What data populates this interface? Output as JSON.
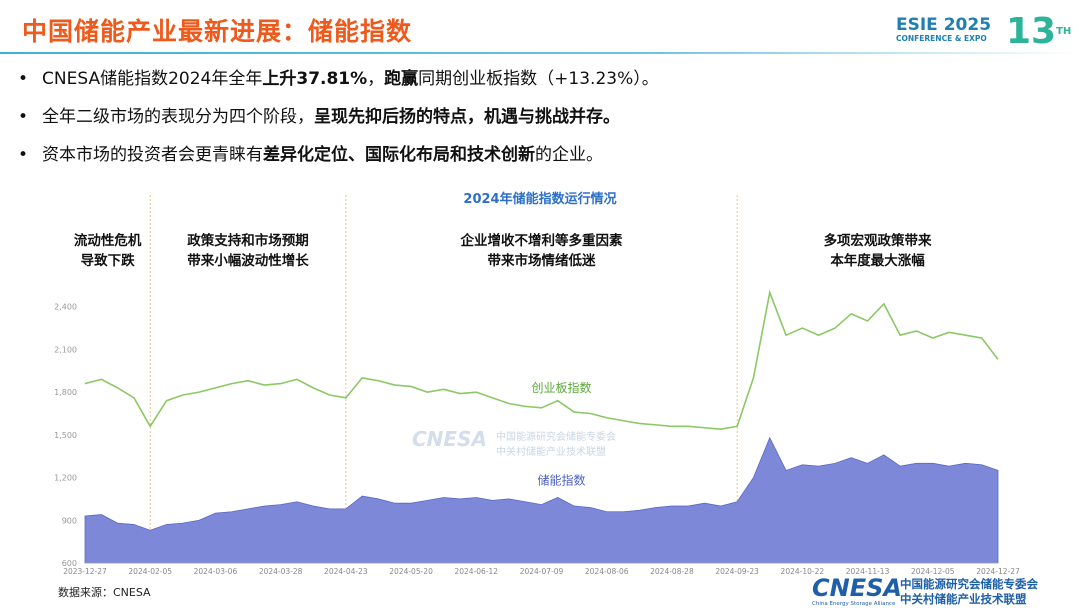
{
  "slide": {
    "title": "中国储能产业最新进展：储能指数",
    "logo": {
      "event": "ESIE 2025",
      "sub": "CONFERENCE & EXPO",
      "edition": "13",
      "edition_suffix": "TH"
    },
    "bullets": [
      [
        {
          "text": "CNESA储能指数2024年全年",
          "bold": false
        },
        {
          "text": "上升37.81%",
          "bold": true
        },
        {
          "text": "，",
          "bold": false
        },
        {
          "text": "跑赢",
          "bold": true
        },
        {
          "text": "同期创业板指数（+13.23%）。",
          "bold": false
        }
      ],
      [
        {
          "text": "全年二级市场的表现分为四个阶段，",
          "bold": false
        },
        {
          "text": "呈现先抑后扬的特点，机遇与挑战并存。",
          "bold": true
        }
      ],
      [
        {
          "text": "资本市场的投资者会更青睐有",
          "bold": false
        },
        {
          "text": "差异化定位、国际化布局和技术创新",
          "bold": true
        },
        {
          "text": "的企业。",
          "bold": false
        }
      ]
    ],
    "source": "数据来源：CNESA",
    "footer_logo": {
      "brand": "CNESA",
      "org1": "中国能源研究会储能专委会",
      "org2": "中关村储能产业技术联盟",
      "english": "China Energy Storage Alliance"
    }
  },
  "chart_data": {
    "type": "line",
    "title": "2024年储能指数运行情况",
    "annotations": [
      [
        "流动性危机",
        "导致下跌"
      ],
      [
        "政策支持和市场预期",
        "带来小幅波动性增长"
      ],
      [
        "企业增收不增利等多重因素",
        "带来市场情绪低迷"
      ],
      [
        "多项宏观政策带来",
        "本年度最大涨幅"
      ]
    ],
    "categories": [
      "2023-12-27",
      null,
      null,
      null,
      "2024-02-05",
      null,
      null,
      null,
      "2024-03-06",
      null,
      null,
      null,
      "2024-03-28",
      null,
      null,
      null,
      "2024-04-23",
      null,
      null,
      null,
      "2024-05-20",
      null,
      null,
      null,
      "2024-06-12",
      null,
      null,
      null,
      "2024-07-09",
      null,
      null,
      null,
      "2024-08-06",
      null,
      null,
      null,
      "2024-08-28",
      null,
      null,
      null,
      "2024-09-23",
      null,
      null,
      null,
      "2024-10-22",
      null,
      null,
      null,
      "2024-11-13",
      null,
      null,
      null,
      "2024-12-05",
      null,
      null,
      null,
      "2024-12-27"
    ],
    "series": [
      {
        "name": "创业板指数",
        "color": "#8cc866",
        "style": "line",
        "values": [
          1860,
          1890,
          1830,
          1760,
          1560,
          1740,
          1780,
          1800,
          1830,
          1860,
          1880,
          1850,
          1860,
          1890,
          1830,
          1780,
          1760,
          1900,
          1880,
          1850,
          1840,
          1800,
          1820,
          1790,
          1800,
          1760,
          1720,
          1700,
          1690,
          1740,
          1660,
          1650,
          1620,
          1600,
          1580,
          1570,
          1560,
          1560,
          1550,
          1540,
          1560,
          1900,
          2500,
          2200,
          2250,
          2200,
          2250,
          2350,
          2300,
          2420,
          2200,
          2230,
          2180,
          2220,
          2200,
          2180,
          2030
        ]
      },
      {
        "name": "储能指数",
        "color": "#7d89d8",
        "style": "area",
        "values": [
          930,
          940,
          880,
          870,
          830,
          870,
          880,
          900,
          950,
          960,
          980,
          1000,
          1010,
          1030,
          1000,
          980,
          980,
          1070,
          1050,
          1020,
          1020,
          1040,
          1060,
          1050,
          1060,
          1040,
          1050,
          1030,
          1010,
          1060,
          1000,
          990,
          960,
          960,
          970,
          990,
          1000,
          1000,
          1020,
          1000,
          1030,
          1200,
          1480,
          1250,
          1290,
          1280,
          1300,
          1340,
          1300,
          1360,
          1280,
          1300,
          1300,
          1280,
          1300,
          1290,
          1250
        ]
      }
    ],
    "ylim": [
      600,
      2700
    ],
    "yticks": [
      600,
      900,
      {
        "value": 1200,
        "label": "1,200"
      },
      {
        "value": 1500,
        "label": "1,500"
      },
      {
        "value": 1800,
        "label": "1,800"
      },
      {
        "value": 2100,
        "label": "2,100"
      },
      {
        "value": 2400,
        "label": "2,400"
      }
    ],
    "grid": false
  }
}
